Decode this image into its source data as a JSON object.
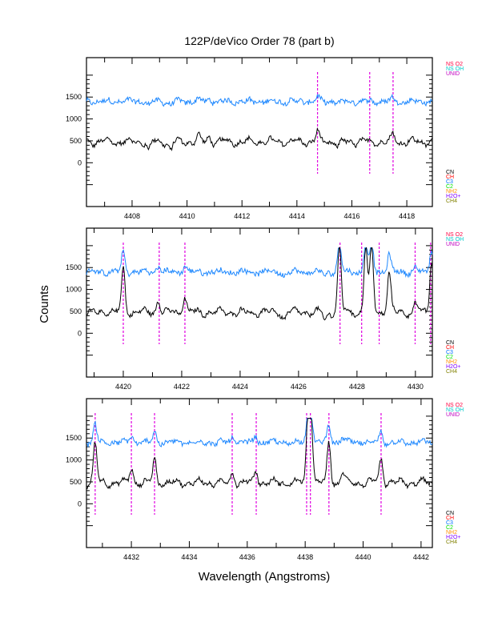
{
  "chart_data": {
    "type": "line",
    "title": "122P/deVico Order 78 (part b)",
    "xlabel": "Wavelength (Angstroms)",
    "ylabel": "Counts",
    "legend_top": [
      {
        "label": "NS O2",
        "color": "#ff0040"
      },
      {
        "label": "NS OH",
        "color": "#00c8c8"
      },
      {
        "label": "UNID",
        "color": "#c000c0"
      }
    ],
    "legend_bottom": [
      {
        "label": "CN",
        "color": "#000000"
      },
      {
        "label": "CH",
        "color": "#ff0000"
      },
      {
        "label": "C3",
        "color": "#0070ff"
      },
      {
        "label": "C2",
        "color": "#00e000"
      },
      {
        "label": "NH2",
        "color": "#ff9000"
      },
      {
        "label": "H2O+",
        "color": "#8000ff"
      },
      {
        "label": "CH4",
        "color": "#808000"
      }
    ],
    "series_colors": {
      "upper": "#1e88ff",
      "lower": "#000000",
      "marker": "#e000e0"
    },
    "panels": [
      {
        "xlim": [
          4406.34,
          4418.93
        ],
        "ylim": [
          -1000,
          2400
        ],
        "xticks": [
          4408,
          4410,
          4412,
          4414,
          4416,
          4418
        ],
        "yticks": [
          0,
          500,
          1000,
          1500
        ],
        "lines": [
          4414.75,
          4416.65,
          4417.5
        ],
        "features": [
          [
            4414.75,
            220
          ],
          [
            4417.5,
            160
          ],
          [
            4408.6,
            -200
          ],
          [
            4409.4,
            -200
          ],
          [
            4415.5,
            -120
          ],
          [
            4410.4,
            120
          ],
          [
            4410.8,
            120
          ]
        ]
      },
      {
        "xlim": [
          4418.74,
          4430.58
        ],
        "ylim": [
          -1000,
          2400
        ],
        "xticks": [
          4420,
          4422,
          4424,
          4426,
          4428,
          4430
        ],
        "yticks": [
          0,
          500,
          1000,
          1500
        ],
        "lines": [
          4420.0,
          4421.23,
          4422.11,
          4427.42,
          4428.16,
          4428.76,
          4429.99,
          4430.52
        ],
        "features": [
          [
            4420.0,
            1000
          ],
          [
            4421.2,
            300
          ],
          [
            4422.1,
            350
          ],
          [
            4427.4,
            1500
          ],
          [
            4428.3,
            1500
          ],
          [
            4428.5,
            1500
          ],
          [
            4429.1,
            900
          ],
          [
            4430.0,
            200
          ],
          [
            4430.55,
            1200
          ],
          [
            4426.9,
            -200
          ],
          [
            4425.5,
            -150
          ]
        ]
      },
      {
        "xlim": [
          4430.45,
          4442.39
        ],
        "ylim": [
          -1000,
          2400
        ],
        "xticks": [
          4432,
          4434,
          4436,
          4438,
          4440,
          4442
        ],
        "yticks": [
          0,
          500,
          1000,
          1500
        ],
        "lines": [
          4430.75,
          4432.0,
          4432.8,
          4435.48,
          4436.31,
          4438.05,
          4438.18,
          4438.82,
          4440.62
        ],
        "features": [
          [
            4430.75,
            900
          ],
          [
            4432.0,
            350
          ],
          [
            4432.8,
            550
          ],
          [
            4435.5,
            250
          ],
          [
            4436.3,
            300
          ],
          [
            4438.1,
            1500
          ],
          [
            4438.2,
            1500
          ],
          [
            4438.82,
            900
          ],
          [
            4440.62,
            550
          ],
          [
            4439.3,
            250
          ]
        ]
      }
    ]
  }
}
